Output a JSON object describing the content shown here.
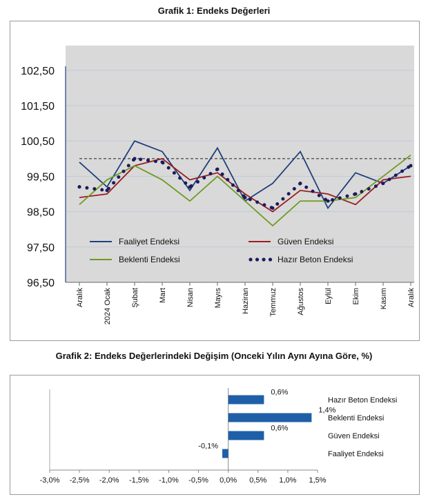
{
  "chart_data": [
    {
      "type": "line",
      "title": "Grafik 1: Endeks Değerleri",
      "categories": [
        "Aralık",
        "2024 Ocak",
        "Şubat",
        "Mart",
        "Nisan",
        "Mayıs",
        "Haziran",
        "Temmuz",
        "Ağustos",
        "Eylül",
        "Ekim",
        "Kasım",
        "Aralık"
      ],
      "y_ticks": [
        "102,50",
        "101,50",
        "100,50",
        "99,50",
        "98,50",
        "97,50",
        "96,50"
      ],
      "ylim": [
        96.5,
        103.2
      ],
      "reference_line": 100.0,
      "grid": true,
      "legend_position": "bottom-inside",
      "series": [
        {
          "name": "Faaliyet Endeksi",
          "style": "solid",
          "color": "#1f3f7a",
          "values": [
            99.9,
            99.2,
            100.5,
            100.2,
            99.1,
            100.3,
            98.8,
            99.3,
            100.2,
            98.6,
            99.6,
            99.3,
            99.8
          ]
        },
        {
          "name": "Güven Endeksi",
          "style": "solid",
          "color": "#9b1c1c",
          "values": [
            98.9,
            99.0,
            99.8,
            100.0,
            99.4,
            99.6,
            99.0,
            98.5,
            99.1,
            99.0,
            98.7,
            99.4,
            99.5
          ]
        },
        {
          "name": "Beklenti Endeksi",
          "style": "solid",
          "color": "#6e9a1f",
          "values": [
            98.7,
            99.4,
            99.8,
            99.4,
            98.8,
            99.5,
            98.8,
            98.1,
            98.8,
            98.8,
            98.9,
            99.5,
            100.1
          ]
        },
        {
          "name": "Hazır Beton Endeksi",
          "style": "dotted",
          "color": "#1b1b5e",
          "values": [
            99.2,
            99.1,
            100.0,
            99.9,
            99.2,
            99.7,
            98.9,
            98.6,
            99.3,
            98.8,
            99.0,
            99.3,
            99.8
          ]
        }
      ]
    },
    {
      "type": "bar",
      "orientation": "horizontal",
      "title": "Grafik 2: Endeks Değerlerindeki Değişim (Onceki Yılın Aynı Ayına Göre, %)",
      "categories": [
        "Hazır Beton Endeksi",
        "Beklenti Endeksi",
        "Güven Endeksi",
        "Faaliyet Endeksi"
      ],
      "values": [
        0.6,
        1.4,
        0.6,
        -0.1
      ],
      "data_labels": [
        "0,6%",
        "1,4%",
        "0,6%",
        "-0,1%"
      ],
      "x_ticks": [
        "-3,0%",
        "-2,5%",
        "-2,0%",
        "-1,5%",
        "-1,0%",
        "-0,5%",
        "0,0%",
        "0,5%",
        "1,0%",
        "1,5%"
      ],
      "xlim": [
        -3.0,
        1.5
      ],
      "bar_color": "#1f5fa8",
      "grid": false
    }
  ]
}
